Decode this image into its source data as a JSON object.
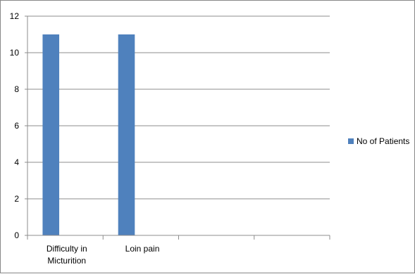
{
  "chart_data": {
    "type": "bar",
    "categories": [
      [
        "Difficulty in",
        "Micturition"
      ],
      [
        "Loin pain"
      ],
      [
        ""
      ],
      [
        ""
      ]
    ],
    "series": [
      {
        "name": "No of Patients",
        "values": [
          11,
          11,
          null,
          null
        ],
        "color": "#4F81BD"
      }
    ],
    "ylim": [
      0,
      12
    ],
    "yticks": [
      "0",
      "2",
      "4",
      "6",
      "8",
      "10",
      "12"
    ],
    "grid": true,
    "legend": "right"
  }
}
